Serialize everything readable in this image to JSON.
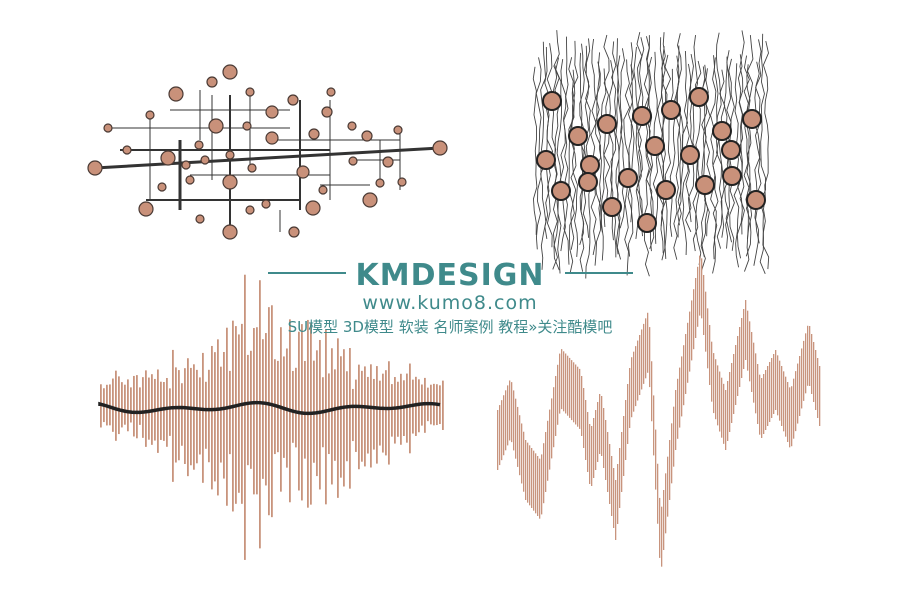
{
  "watermark": {
    "title": "KMDESIGN",
    "url": "www.kumo8.com",
    "tagline": "SU模型 3D模型 软装 名师案例 教程»关注酷模吧",
    "color": "#3f8a8b"
  },
  "artworks": [
    {
      "name": "circuit-dots",
      "icon": "lines-with-circles"
    },
    {
      "name": "wavy-lines-with-circles",
      "icon": "vertical-wavy-lines"
    },
    {
      "name": "sound-wave-bars",
      "icon": "waveform"
    },
    {
      "name": "zigzag-wave",
      "icon": "zigzag"
    }
  ],
  "colors": {
    "circle_fill": "#c9917a",
    "circle_stroke": "#4a3a34",
    "bar": "#c8947d",
    "line": "#333333"
  }
}
